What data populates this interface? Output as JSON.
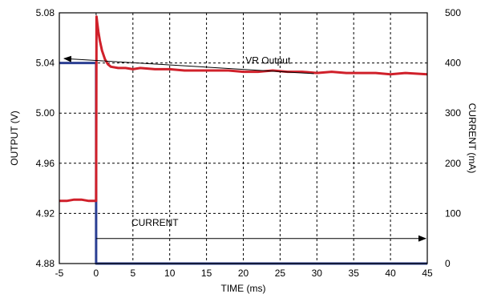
{
  "chart_data": {
    "type": "line",
    "title": "",
    "xlabel": "TIME (ms)",
    "ylabel_left": "OUTPUT (V)",
    "ylabel_right": "CURRENT (mA)",
    "xlim": [
      -5,
      45
    ],
    "ylim_left": [
      4.88,
      5.08
    ],
    "ylim_right": [
      0,
      500
    ],
    "x_ticks": [
      -5,
      0,
      5,
      10,
      15,
      20,
      25,
      30,
      35,
      40,
      45
    ],
    "y_left_ticks": [
      "4.88",
      "4.92",
      "4.96",
      "5.00",
      "5.04",
      "5.08"
    ],
    "y_right_ticks": [
      "0",
      "100",
      "200",
      "300",
      "400",
      "500"
    ],
    "grid": true,
    "series": [
      {
        "name": "VR Output",
        "axis": "left",
        "color": "#d0202a",
        "x": [
          -5,
          -4,
          -3,
          -2,
          -1,
          -0.2,
          0,
          0.05,
          0.15,
          0.3,
          0.5,
          0.8,
          1.2,
          1.6,
          2,
          3,
          4,
          5,
          6,
          8,
          10,
          12,
          14,
          16,
          18,
          20,
          22,
          24,
          26,
          28,
          30,
          32,
          34,
          36,
          38,
          40,
          42,
          45
        ],
        "values": [
          4.93,
          4.93,
          4.931,
          4.931,
          4.93,
          4.93,
          4.93,
          5.077,
          5.072,
          5.065,
          5.058,
          5.05,
          5.043,
          5.039,
          5.037,
          5.036,
          5.036,
          5.035,
          5.036,
          5.035,
          5.035,
          5.034,
          5.034,
          5.034,
          5.034,
          5.033,
          5.033,
          5.034,
          5.033,
          5.033,
          5.032,
          5.033,
          5.032,
          5.032,
          5.032,
          5.031,
          5.032,
          5.031
        ]
      },
      {
        "name": "CURRENT",
        "axis": "right",
        "color": "#2b3f93",
        "x": [
          -5,
          0,
          0,
          45
        ],
        "values": [
          400,
          400,
          0,
          0
        ]
      }
    ],
    "annotations": [
      {
        "text": "VR  Output",
        "arrow": "left"
      },
      {
        "text": "CURRENT",
        "arrow": "right"
      }
    ]
  }
}
